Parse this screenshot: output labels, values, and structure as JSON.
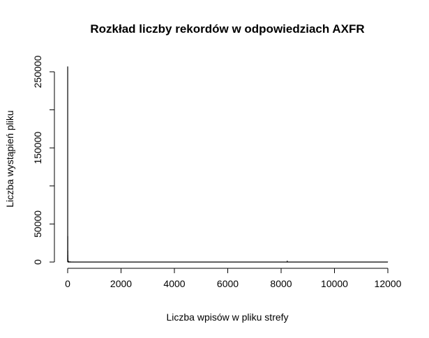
{
  "chart_data": {
    "type": "line",
    "title": "Rozkład liczby rekordów w odpowiedziach AXFR",
    "xlabel": "Liczba wpisów w pliku strefy",
    "ylabel": "Liczba wystąpień pliku",
    "xlim": [
      0,
      12100
    ],
    "ylim": [
      0,
      260000
    ],
    "x_ticks": [
      0,
      2000,
      4000,
      6000,
      8000,
      10000,
      12000
    ],
    "x_tick_labels": [
      "0",
      "2000",
      "4000",
      "6000",
      "8000",
      "10000",
      "12000"
    ],
    "y_ticks": [
      0,
      50000,
      100000,
      150000,
      200000,
      250000
    ],
    "y_tick_labels": [
      "0",
      "50000",
      "",
      "150000",
      "",
      "250000"
    ],
    "grid": false,
    "series": [
      {
        "style": "histogram-spikes",
        "x": [
          1,
          2,
          3,
          4,
          5,
          6,
          8,
          10,
          15,
          20,
          30,
          50,
          100,
          200,
          400,
          8230,
          12000
        ],
        "y": [
          257000,
          34000,
          15000,
          9000,
          6000,
          4000,
          3000,
          2500,
          2000,
          1500,
          1200,
          1000,
          800,
          500,
          300,
          1800,
          200
        ]
      }
    ]
  }
}
